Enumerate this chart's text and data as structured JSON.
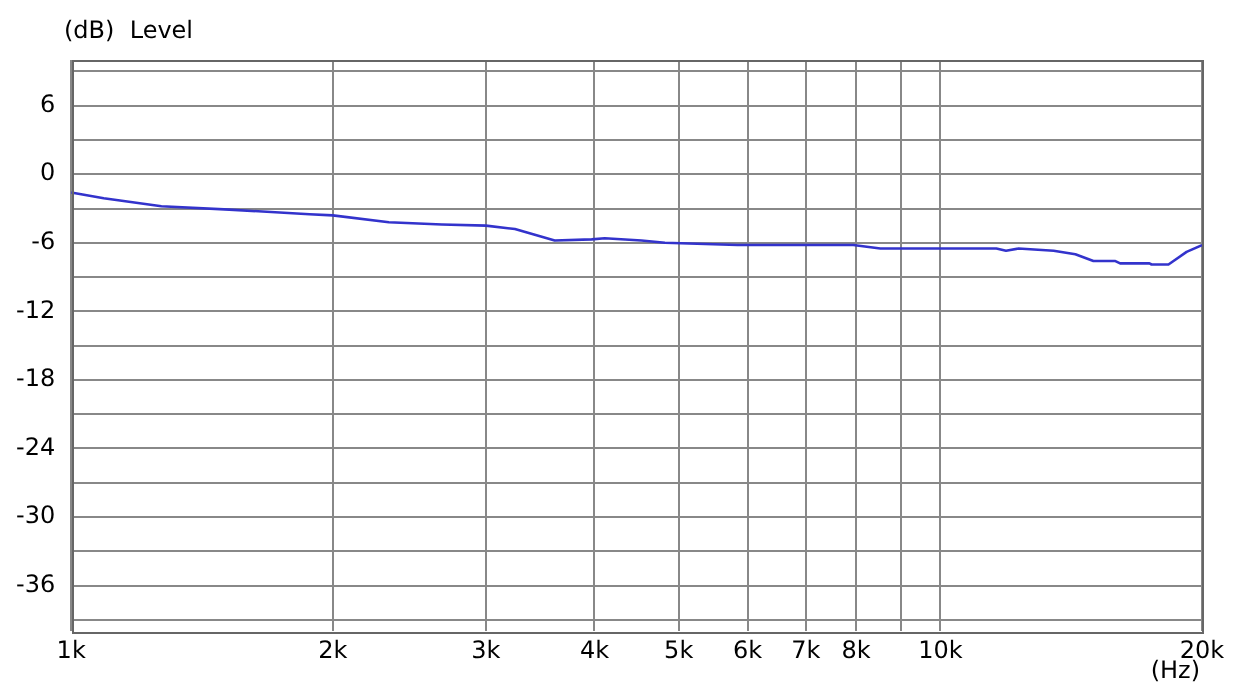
{
  "chart_data": {
    "type": "line",
    "ylabel": "(dB)  Level",
    "xlabel": "(Hz)",
    "log": "x",
    "grid": true,
    "legend": false,
    "marker": "none",
    "line_style": "solid",
    "xlim": [
      1000,
      20000
    ],
    "xticks": [
      {
        "value": 1000,
        "label": "1k"
      },
      {
        "value": 2000,
        "label": "2k"
      },
      {
        "value": 3000,
        "label": "3k"
      },
      {
        "value": 4000,
        "label": "4k"
      },
      {
        "value": 5000,
        "label": "5k"
      },
      {
        "value": 6000,
        "label": "6k"
      },
      {
        "value": 7000,
        "label": "7k"
      },
      {
        "value": 8000,
        "label": "8k"
      },
      {
        "value": 9000,
        "label": null
      },
      {
        "value": 10000,
        "label": "10k"
      },
      {
        "value": 20000,
        "label": "20k"
      }
    ],
    "ylim": [
      -40,
      10
    ],
    "yticks": [
      {
        "value": -39,
        "label": null
      },
      -36,
      {
        "value": -33,
        "label": null
      },
      -30,
      {
        "value": -27,
        "label": null
      },
      -24,
      {
        "value": -21,
        "label": null
      },
      -18,
      {
        "value": -15,
        "label": null
      },
      -12,
      {
        "value": -9,
        "label": null
      },
      -6,
      {
        "value": -3,
        "label": null
      },
      0,
      {
        "value": 3,
        "label": null
      },
      6,
      {
        "value": 9,
        "label": null
      }
    ],
    "series": [
      {
        "color": "#3333cc",
        "x": [
          1000,
          1090,
          1270,
          1520,
          1880,
          2000,
          2320,
          2670,
          3000,
          3240,
          3600,
          3970,
          4110,
          4530,
          4820,
          5840,
          7940,
          8530,
          11600,
          11900,
          12300,
          13500,
          14300,
          15000,
          15900,
          16100,
          17400,
          17500,
          18300,
          19200,
          20000
        ],
        "values": [
          -1.6,
          -2.1,
          -2.8,
          -3.1,
          -3.5,
          -3.6,
          -4.2,
          -4.4,
          -4.5,
          -4.8,
          -5.8,
          -5.7,
          -5.6,
          -5.8,
          -6.0,
          -6.2,
          -6.2,
          -6.5,
          -6.5,
          -6.7,
          -6.5,
          -6.7,
          -7.0,
          -7.6,
          -7.6,
          -7.8,
          -7.8,
          -7.9,
          -7.9,
          -6.8,
          -6.2
        ]
      }
    ]
  }
}
